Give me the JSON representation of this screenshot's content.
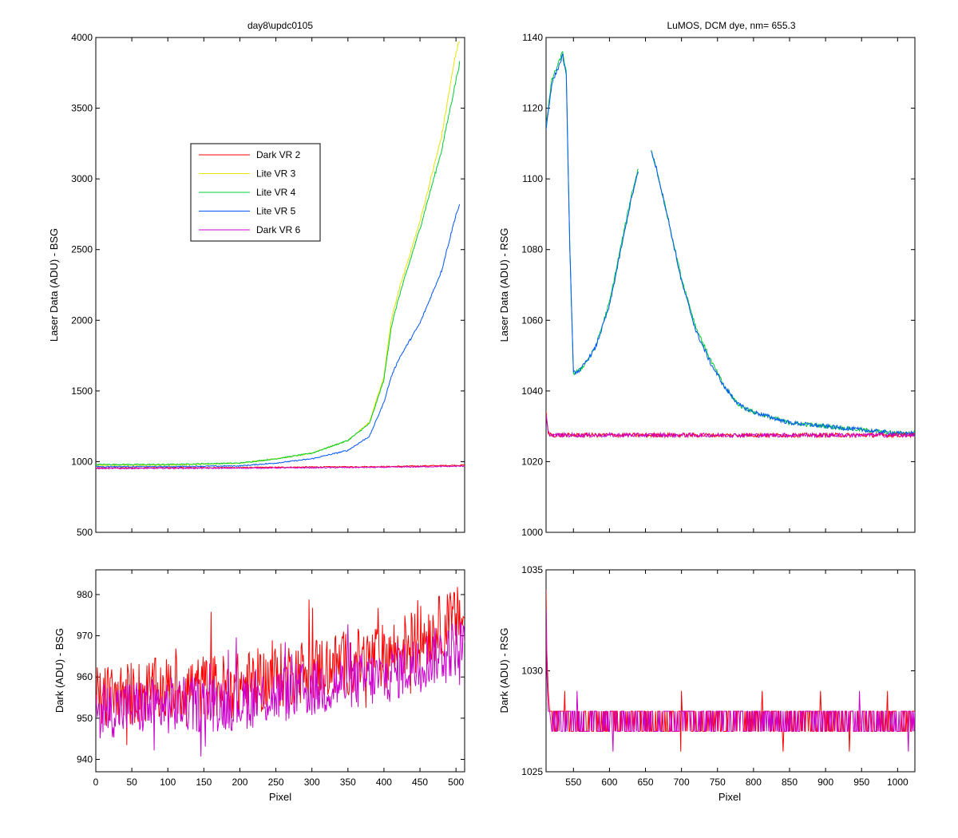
{
  "chart_data": [
    {
      "id": "top-left",
      "type": "line",
      "title": "day8\\updc0105",
      "xlabel": "",
      "ylabel": "Laser Data (ADU) - BSG",
      "xlim": [
        0,
        512
      ],
      "ylim": [
        500,
        4000
      ],
      "xticks": [],
      "yticks": [
        500,
        1000,
        1500,
        2000,
        2500,
        3000,
        3500,
        4000
      ],
      "legend": {
        "placement": "upper-left-inside"
      },
      "series": [
        {
          "name": "Dark VR 2",
          "color": "#ff0000",
          "x": [
            0,
            100,
            200,
            300,
            400,
            512
          ],
          "y": [
            955,
            957,
            958,
            962,
            965,
            975
          ]
        },
        {
          "name": "Lite VR 3",
          "color": "#e6e600",
          "x": [
            0,
            100,
            200,
            250,
            300,
            350,
            380,
            400,
            410,
            420,
            450,
            480,
            500,
            505
          ],
          "y": [
            975,
            975,
            990,
            1020,
            1060,
            1150,
            1280,
            1600,
            2000,
            2200,
            2700,
            3300,
            3900,
            3980
          ]
        },
        {
          "name": "Lite VR 4",
          "color": "#00cc33",
          "x": [
            0,
            100,
            200,
            250,
            300,
            350,
            380,
            400,
            410,
            420,
            450,
            480,
            500,
            505
          ],
          "y": [
            980,
            980,
            990,
            1020,
            1060,
            1150,
            1270,
            1580,
            1950,
            2150,
            2650,
            3200,
            3700,
            3820
          ]
        },
        {
          "name": "Lite VR 5",
          "color": "#0055ff",
          "x": [
            0,
            100,
            200,
            250,
            300,
            350,
            380,
            400,
            410,
            420,
            450,
            480,
            500,
            505
          ],
          "y": [
            965,
            965,
            970,
            990,
            1020,
            1080,
            1180,
            1420,
            1600,
            1720,
            1980,
            2350,
            2750,
            2810
          ]
        },
        {
          "name": "Dark VR 6",
          "color": "#cc00cc",
          "x": [
            0,
            100,
            200,
            300,
            400,
            512
          ],
          "y": [
            952,
            953,
            954,
            957,
            960,
            968
          ]
        }
      ]
    },
    {
      "id": "top-right",
      "type": "line",
      "title": "LuMOS, DCM dye, nm= 655.3",
      "xlabel": "",
      "ylabel": "Laser Data (ADU) - RSG",
      "xlim": [
        512,
        1024
      ],
      "ylim": [
        1000,
        1140
      ],
      "xticks": [],
      "yticks": [
        1000,
        1020,
        1040,
        1060,
        1080,
        1100,
        1120,
        1140
      ],
      "series": [
        {
          "color": "#00cc33",
          "x": [
            512,
            520,
            530,
            535,
            540,
            545,
            550,
            560,
            580,
            600,
            620,
            630,
            640
          ],
          "y": [
            1115,
            1128,
            1133,
            1136,
            1130,
            1080,
            1045,
            1046,
            1052,
            1065,
            1085,
            1095,
            1103
          ]
        },
        {
          "color": "#0055ff",
          "x": [
            512,
            520,
            530,
            535,
            540,
            545,
            550,
            560,
            580,
            600,
            620,
            630,
            640
          ],
          "y": [
            1114,
            1127,
            1132,
            1135,
            1129,
            1080,
            1045,
            1046,
            1052,
            1064,
            1084,
            1094,
            1102
          ]
        },
        {
          "color": "#00cc33",
          "x": [
            658,
            665,
            680,
            700,
            720,
            740,
            760,
            780,
            800,
            850,
            900,
            950,
            1000,
            1024
          ],
          "y": [
            1108,
            1103,
            1090,
            1072,
            1058,
            1049,
            1041,
            1036,
            1034,
            1031,
            1030,
            1029,
            1028,
            1028
          ]
        },
        {
          "color": "#0055ff",
          "x": [
            658,
            665,
            680,
            700,
            720,
            740,
            760,
            780,
            800,
            850,
            900,
            950,
            1000,
            1024
          ],
          "y": [
            1108,
            1103,
            1090,
            1071,
            1057,
            1048,
            1041,
            1036,
            1034,
            1031,
            1030,
            1029,
            1028,
            1028
          ]
        },
        {
          "color": "#ff0000",
          "x": [
            512,
            515,
            520,
            1024
          ],
          "y": [
            1034,
            1028,
            1027.5,
            1027.5
          ]
        },
        {
          "color": "#cc00cc",
          "x": [
            512,
            515,
            520,
            1024
          ],
          "y": [
            1033,
            1028,
            1027.5,
            1027.5
          ]
        }
      ]
    },
    {
      "id": "bottom-left",
      "type": "line",
      "title": "",
      "xlabel": "Pixel",
      "ylabel": "Dark (ADU) - BSG",
      "xlim": [
        0,
        512
      ],
      "ylim": [
        937,
        986
      ],
      "xticks": [
        0,
        50,
        100,
        150,
        200,
        250,
        300,
        350,
        400,
        450,
        500
      ],
      "yticks": [
        940,
        950,
        960,
        970,
        980
      ],
      "series": [
        {
          "color": "#ff0000",
          "x": [
            0,
            100,
            200,
            300,
            400,
            512
          ],
          "y": [
            955,
            957,
            958,
            962,
            965,
            975
          ],
          "noise": 8
        },
        {
          "color": "#cc00cc",
          "x": [
            0,
            100,
            200,
            300,
            400,
            512
          ],
          "y": [
            952,
            953,
            954,
            957,
            960,
            968
          ],
          "noise": 7
        }
      ]
    },
    {
      "id": "bottom-right",
      "type": "line",
      "title": "",
      "xlabel": "Pixel",
      "ylabel": "Dark (ADU) - RSG",
      "xlim": [
        512,
        1024
      ],
      "ylim": [
        1025,
        1035
      ],
      "xticks": [
        550,
        600,
        650,
        700,
        750,
        800,
        850,
        900,
        950,
        1000
      ],
      "yticks": [
        1025,
        1030,
        1035
      ],
      "series": [
        {
          "color": "#ff0000",
          "x": [
            512,
            513,
            515,
            517,
            520,
            1024
          ],
          "y": [
            1034,
            1031,
            1029,
            1028,
            1028,
            1028
          ],
          "levels": [
            1027,
            1028
          ]
        },
        {
          "color": "#cc00cc",
          "x": [
            512,
            513,
            515,
            517,
            520,
            1024
          ],
          "y": [
            1033,
            1030,
            1028,
            1028,
            1027,
            1027
          ],
          "levels": [
            1027,
            1028
          ]
        }
      ]
    }
  ]
}
